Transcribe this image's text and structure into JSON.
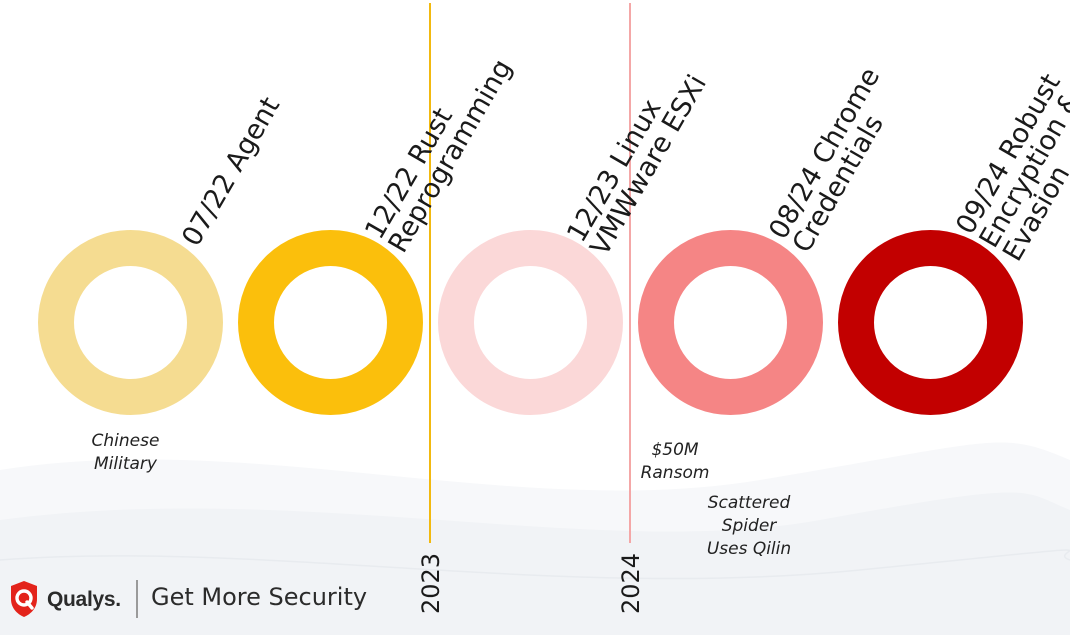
{
  "milestones": [
    {
      "lines": [
        "07/22 Agent"
      ],
      "color": "#f5dc91"
    },
    {
      "lines": [
        "12/22 Rust",
        "Reprogramming"
      ],
      "color": "#fbbf0c"
    },
    {
      "lines": [
        "12/23 Linux",
        "VMWware ESXi"
      ],
      "color": "#fbd8d8"
    },
    {
      "lines": [
        "08/24 Chrome",
        "Credentials"
      ],
      "color": "#f58585"
    },
    {
      "lines": [
        "09/24 Robust",
        "Encryption &",
        "Evasion"
      ],
      "color": "#c20000"
    }
  ],
  "year_markers": [
    {
      "label": "2023",
      "color": "#f2b90f"
    },
    {
      "label": "2024",
      "color": "#f4a7a7"
    }
  ],
  "notes": [
    {
      "lines": [
        "Chinese",
        "Military"
      ]
    },
    {
      "lines": [
        "$50M",
        "Ransom"
      ]
    },
    {
      "lines": [
        "Scattered",
        "Spider",
        "Uses Qilin"
      ]
    }
  ],
  "footer": {
    "brand": "Qualys.",
    "tagline": "Get More Security",
    "logo_icon": "qualys-shield-q-icon",
    "accent_color": "#e3231b"
  }
}
